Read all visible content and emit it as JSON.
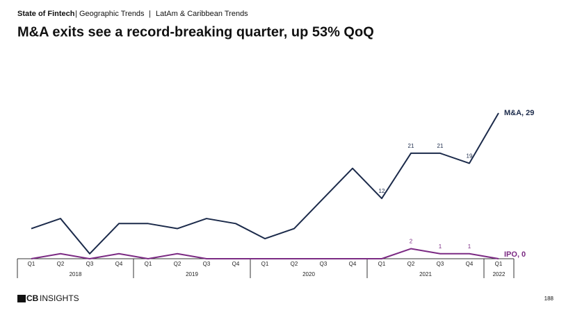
{
  "header": {
    "breadcrumb": [
      "State of Fintech",
      "Geographic Trends",
      "LatAm & Caribbean Trends"
    ],
    "separator": "|"
  },
  "chart_data": {
    "type": "line",
    "title": "M&A exits see a record-breaking quarter, up 53% QoQ",
    "categories": [
      {
        "quarter": "Q1",
        "year": "2018"
      },
      {
        "quarter": "Q2",
        "year": "2018"
      },
      {
        "quarter": "Q3",
        "year": "2018"
      },
      {
        "quarter": "Q4",
        "year": "2018"
      },
      {
        "quarter": "Q1",
        "year": "2019"
      },
      {
        "quarter": "Q2",
        "year": "2019"
      },
      {
        "quarter": "Q3",
        "year": "2019"
      },
      {
        "quarter": "Q4",
        "year": "2019"
      },
      {
        "quarter": "Q1",
        "year": "2020"
      },
      {
        "quarter": "Q2",
        "year": "2020"
      },
      {
        "quarter": "Q3",
        "year": "2020"
      },
      {
        "quarter": "Q4",
        "year": "2020"
      },
      {
        "quarter": "Q1",
        "year": "2021"
      },
      {
        "quarter": "Q2",
        "year": "2021"
      },
      {
        "quarter": "Q3",
        "year": "2021"
      },
      {
        "quarter": "Q4",
        "year": "2021"
      },
      {
        "quarter": "Q1",
        "year": "2022"
      }
    ],
    "ylim": [
      0,
      29
    ],
    "series": [
      {
        "label": "M&A, 29",
        "color": "#1b2a4a",
        "values": [
          6,
          8,
          1,
          7,
          7,
          6,
          8,
          7,
          4,
          6,
          12,
          18,
          12,
          21,
          21,
          19,
          29
        ],
        "value_labels": [
          null,
          null,
          null,
          null,
          null,
          null,
          null,
          null,
          null,
          null,
          null,
          null,
          "12",
          "21",
          "21",
          "19",
          null
        ]
      },
      {
        "label": "IPO, 0",
        "color": "#7b2a83",
        "values": [
          0,
          1,
          0,
          1,
          0,
          1,
          0,
          0,
          0,
          0,
          0,
          0,
          0,
          2,
          1,
          1,
          0
        ],
        "value_labels": [
          null,
          null,
          null,
          null,
          null,
          null,
          null,
          null,
          null,
          null,
          null,
          null,
          null,
          "2",
          "1",
          "1",
          null
        ]
      }
    ]
  },
  "footer": {
    "logo_bold": "CB",
    "logo_text": "INSIGHTS",
    "page_number": "188"
  }
}
